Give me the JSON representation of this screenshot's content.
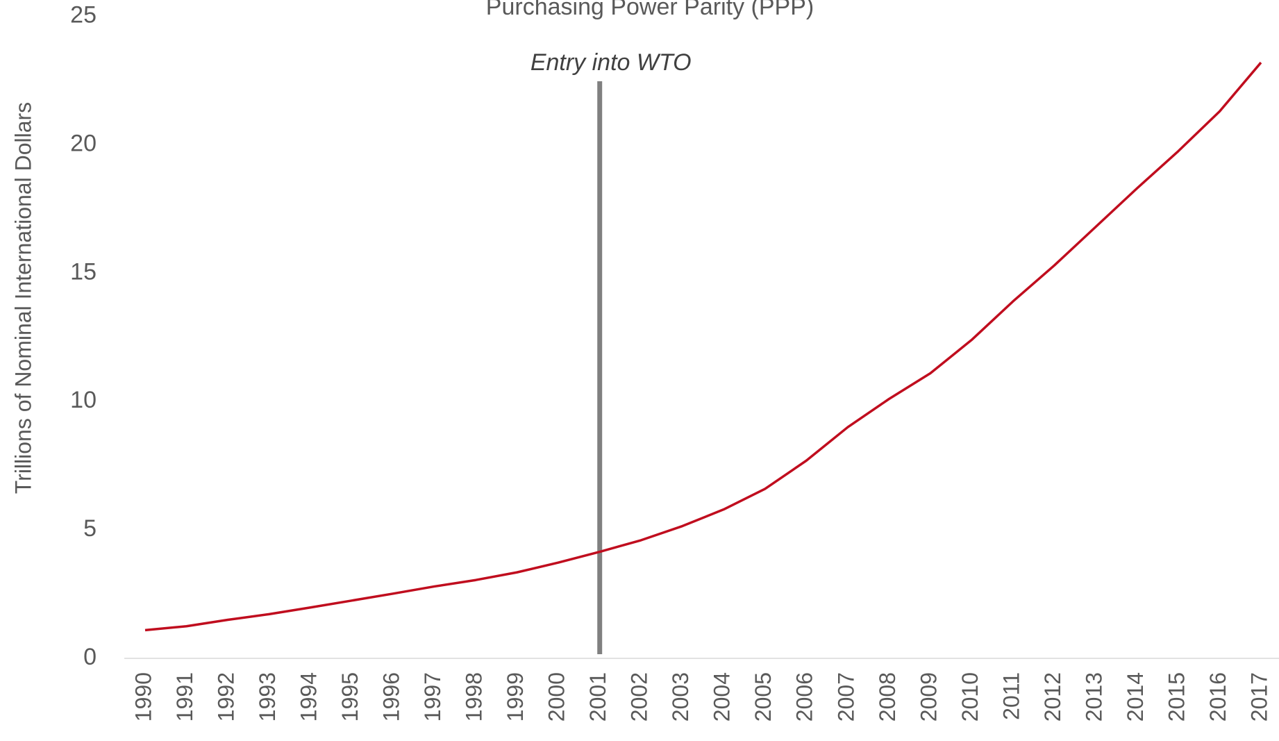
{
  "chart_data": {
    "type": "line",
    "title": "Purchasing Power Parity (PPP)",
    "ylabel": "Trillions of Nominal International Dollars",
    "categories": [
      "1990",
      "1991",
      "1992",
      "1993",
      "1994",
      "1995",
      "1996",
      "1997",
      "1998",
      "1999",
      "2000",
      "2001",
      "2002",
      "2003",
      "2004",
      "2005",
      "2006",
      "2007",
      "2008",
      "2009",
      "2010",
      "2011",
      "2012",
      "2013",
      "2014",
      "2015",
      "2016",
      "2017"
    ],
    "series": [
      {
        "name": "PPP",
        "color": "#c00d1e",
        "values": [
          1.1,
          1.25,
          1.5,
          1.72,
          1.98,
          2.25,
          2.52,
          2.8,
          3.05,
          3.35,
          3.73,
          4.15,
          4.6,
          5.15,
          5.8,
          6.6,
          7.7,
          9.0,
          10.1,
          11.1,
          12.4,
          13.9,
          15.3,
          16.8,
          18.3,
          19.75,
          21.3,
          23.2
        ]
      }
    ],
    "ylim": [
      0,
      25
    ],
    "yticks": [
      0,
      5,
      10,
      15,
      20,
      25
    ],
    "annotations": [
      {
        "text": "Entry into WTO",
        "x": "2001",
        "color": "#808080"
      }
    ]
  }
}
